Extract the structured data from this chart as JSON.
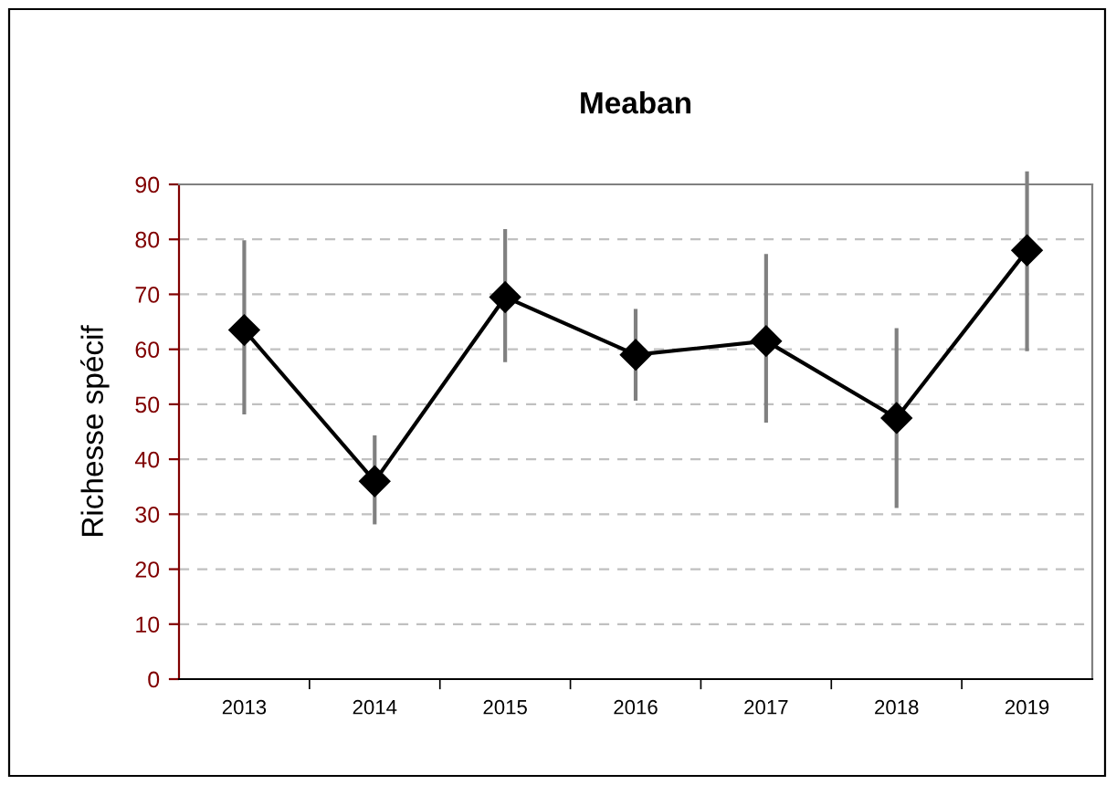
{
  "chart_data": {
    "type": "line",
    "title": "Meaban",
    "ylabel": "Richesse spécif",
    "categories": [
      "2013",
      "2014",
      "2015",
      "2016",
      "2017",
      "2018",
      "2019"
    ],
    "series": [
      {
        "color": "#000000",
        "values": [
          63.5,
          36,
          69.5,
          59,
          61.5,
          47.5,
          78
        ],
        "errors": [
          [
            48.5,
            79.5
          ],
          [
            28.5,
            44
          ],
          [
            58,
            81.5
          ],
          [
            51,
            67
          ],
          [
            47,
            77
          ],
          [
            31.5,
            63.5
          ],
          [
            60,
            92
          ]
        ]
      }
    ],
    "ylim": [
      0,
      90
    ],
    "yticks": [
      0,
      10,
      20,
      30,
      40,
      50,
      60,
      70,
      80,
      90
    ],
    "grid": "y",
    "marker": "diamond",
    "line_style": "solid",
    "legend": false
  }
}
